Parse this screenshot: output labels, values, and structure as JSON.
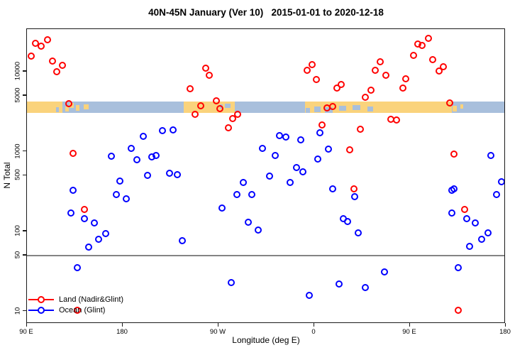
{
  "chart_data": {
    "type": "scatter",
    "title": "40N-45N January (Ver 10)   2015-01-01 to 2020-12-18",
    "xlabel": "Longitude (deg E)",
    "ylabel": "N Total",
    "grid": false,
    "legend_position": "bottom-left",
    "x_axis": {
      "range": [
        90,
        540
      ],
      "ticks": [
        {
          "value": 90,
          "label": "90 E"
        },
        {
          "value": 180,
          "label": "180"
        },
        {
          "value": 270,
          "label": "90 W"
        },
        {
          "value": 360,
          "label": "0"
        },
        {
          "value": 450,
          "label": "90 E"
        },
        {
          "value": 540,
          "label": "180"
        }
      ]
    },
    "y_axis": {
      "scale": "log",
      "range": [
        8.5,
        42000
      ],
      "ticks": [
        {
          "value": 10,
          "label": "10"
        },
        {
          "value": 50,
          "label": "50"
        },
        {
          "value": 100,
          "label": "100"
        },
        {
          "value": 500,
          "label": "500"
        },
        {
          "value": 1000,
          "label": "1000"
        },
        {
          "value": 5000,
          "label": "5000"
        },
        {
          "value": 10000,
          "label": "10000"
        }
      ]
    },
    "reference_line": {
      "value": 50,
      "color": "#848484"
    },
    "land_ocean_strip": {
      "n_top": 4200,
      "n_bottom": 3050,
      "land_color": "#FAD37C",
      "ocean_color": "#A8BFDC",
      "segments": [
        {
          "from": 90,
          "to": 123,
          "kind": "land"
        },
        {
          "from": 123,
          "to": 237,
          "kind": "ocean"
        },
        {
          "from": 237,
          "to": 285,
          "kind": "land"
        },
        {
          "from": 285,
          "to": 351,
          "kind": "ocean"
        },
        {
          "from": 351,
          "to": 489,
          "kind": "land"
        },
        {
          "from": 489,
          "to": 540,
          "kind": "ocean"
        }
      ],
      "patches": [
        {
          "from": 117,
          "to": 120,
          "top": 0.5,
          "bottom": 0.95,
          "kind": "ocean"
        },
        {
          "from": 126,
          "to": 129,
          "top": 0.45,
          "bottom": 0.9,
          "kind": "land"
        },
        {
          "from": 130,
          "to": 134,
          "top": 0.1,
          "bottom": 0.55,
          "kind": "land"
        },
        {
          "from": 136,
          "to": 139,
          "top": 0.3,
          "bottom": 0.8,
          "kind": "land"
        },
        {
          "from": 143,
          "to": 148,
          "top": 0.2,
          "bottom": 0.65,
          "kind": "land"
        },
        {
          "from": 271,
          "to": 274,
          "top": 0.25,
          "bottom": 0.6,
          "kind": "ocean"
        },
        {
          "from": 276,
          "to": 281,
          "top": 0.15,
          "bottom": 0.55,
          "kind": "ocean"
        },
        {
          "from": 352,
          "to": 356,
          "top": 0.55,
          "bottom": 1,
          "kind": "ocean"
        },
        {
          "from": 360,
          "to": 366,
          "top": 0.45,
          "bottom": 0.95,
          "kind": "ocean"
        },
        {
          "from": 370,
          "to": 377,
          "top": 0.5,
          "bottom": 1,
          "kind": "ocean"
        },
        {
          "from": 383,
          "to": 390,
          "top": 0.35,
          "bottom": 0.8,
          "kind": "ocean"
        },
        {
          "from": 396,
          "to": 403,
          "top": 0.3,
          "bottom": 0.75,
          "kind": "ocean"
        },
        {
          "from": 410,
          "to": 415,
          "top": 0.4,
          "bottom": 0.9,
          "kind": "ocean"
        },
        {
          "from": 490,
          "to": 494,
          "top": 0.35,
          "bottom": 0.85,
          "kind": "land"
        },
        {
          "from": 497,
          "to": 500,
          "top": 0.2,
          "bottom": 0.6,
          "kind": "land"
        }
      ]
    },
    "series": [
      {
        "name": "Land (Nadir&Glint)",
        "color": "#FF0000",
        "points": [
          [
            98,
            22700
          ],
          [
            103,
            21000
          ],
          [
            109,
            25000
          ],
          [
            94,
            15700
          ],
          [
            114,
            13600
          ],
          [
            123,
            12000
          ],
          [
            118,
            10000
          ],
          [
            129,
            4000
          ],
          [
            133,
            950
          ],
          [
            144,
            190
          ],
          [
            137,
            10.3
          ],
          [
            243,
            6100
          ],
          [
            248,
            2930
          ],
          [
            253,
            3740
          ],
          [
            258,
            11000
          ],
          [
            261,
            9000
          ],
          [
            268,
            4320
          ],
          [
            271,
            3450
          ],
          [
            279,
            2000
          ],
          [
            283,
            2600
          ],
          [
            288,
            2930
          ],
          [
            353,
            10400
          ],
          [
            358,
            12300
          ],
          [
            362,
            8000
          ],
          [
            367,
            2150
          ],
          [
            372,
            3500
          ],
          [
            377,
            3700
          ],
          [
            381,
            6240
          ],
          [
            385,
            6900
          ],
          [
            393,
            1050
          ],
          [
            397,
            340
          ],
          [
            403,
            1900
          ],
          [
            408,
            4800
          ],
          [
            413,
            5900
          ],
          [
            417,
            10400
          ],
          [
            422,
            13300
          ],
          [
            427,
            9000
          ],
          [
            432,
            2540
          ],
          [
            437,
            2480
          ],
          [
            443,
            6240
          ],
          [
            446,
            8140
          ],
          [
            453,
            16000
          ],
          [
            457,
            22200
          ],
          [
            461,
            21300
          ],
          [
            467,
            26200
          ],
          [
            471,
            14200
          ],
          [
            477,
            10200
          ],
          [
            481,
            11500
          ],
          [
            487,
            4100
          ],
          [
            491,
            930
          ],
          [
            495,
            10.3
          ],
          [
            501,
            190
          ]
        ]
      },
      {
        "name": "Ocean (Glint)",
        "color": "#0000FF",
        "points": [
          [
            199,
            1550
          ],
          [
            217,
            1830
          ],
          [
            227,
            1870
          ],
          [
            188,
            1100
          ],
          [
            169,
            875
          ],
          [
            193,
            790
          ],
          [
            207,
            850
          ],
          [
            211,
            893
          ],
          [
            224,
            536
          ],
          [
            231,
            514
          ],
          [
            203,
            503
          ],
          [
            177,
            428
          ],
          [
            133,
            328
          ],
          [
            131,
            170
          ],
          [
            144,
            145
          ],
          [
            153,
            128
          ],
          [
            164,
            94
          ],
          [
            157,
            80
          ],
          [
            148,
            64
          ],
          [
            137,
            35
          ],
          [
            174,
            290
          ],
          [
            183,
            256
          ],
          [
            236,
            77
          ],
          [
            273,
            196
          ],
          [
            282,
            23
          ],
          [
            287,
            290
          ],
          [
            293,
            410
          ],
          [
            298,
            131
          ],
          [
            301,
            290
          ],
          [
            307,
            104
          ],
          [
            311,
            1100
          ],
          [
            318,
            493
          ],
          [
            323,
            893
          ],
          [
            327,
            1585
          ],
          [
            333,
            1520
          ],
          [
            337,
            413
          ],
          [
            343,
            631
          ],
          [
            347,
            1400
          ],
          [
            349,
            558
          ],
          [
            355,
            16
          ],
          [
            363,
            807
          ],
          [
            365,
            1720
          ],
          [
            373,
            1074
          ],
          [
            377,
            341
          ],
          [
            383,
            22
          ],
          [
            387,
            145
          ],
          [
            391,
            133
          ],
          [
            398,
            273
          ],
          [
            401,
            96
          ],
          [
            408,
            20
          ],
          [
            426,
            31
          ],
          [
            489,
            328
          ],
          [
            489,
            170
          ],
          [
            491,
            341
          ],
          [
            495,
            35
          ],
          [
            503,
            145
          ],
          [
            506,
            65
          ],
          [
            511,
            128
          ],
          [
            517,
            80
          ],
          [
            523,
            96
          ],
          [
            526,
            893
          ],
          [
            531,
            290
          ],
          [
            536,
            419
          ]
        ]
      }
    ]
  }
}
